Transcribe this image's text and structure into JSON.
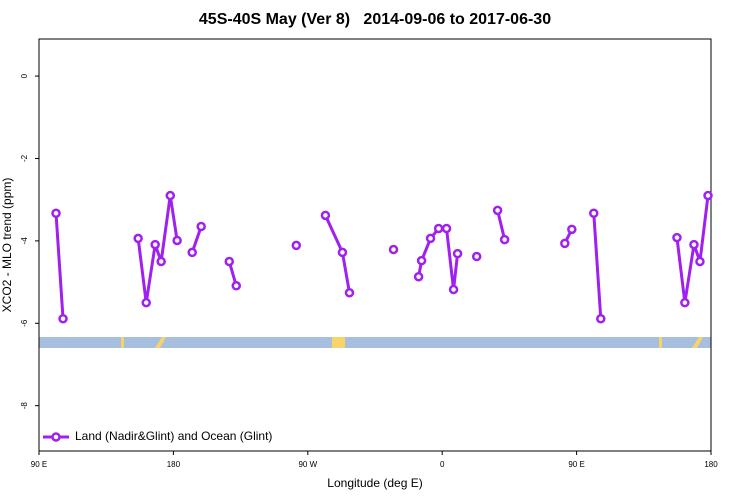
{
  "chart_data": {
    "type": "line",
    "title": "45S-40S May (Ver 8)   2014-09-06 to 2017-06-30",
    "xlabel": "Longitude (deg E)",
    "ylabel": "XCO2 - MLO trend (ppm)",
    "xlim": [
      90,
      540
    ],
    "ylim": [
      -9.1,
      0.9
    ],
    "xticks": [
      {
        "value": 90,
        "label": "90 E"
      },
      {
        "value": 180,
        "label": "180"
      },
      {
        "value": 270,
        "label": "90 W"
      },
      {
        "value": 360,
        "label": "0"
      },
      {
        "value": 450,
        "label": "90 E"
      },
      {
        "value": 540,
        "label": "180"
      }
    ],
    "yticks": [
      0,
      -2,
      -4,
      -6,
      -8
    ],
    "legend": "bottom-left",
    "series": [
      {
        "name": "Land (Nadir&Glint) and Ocean (Glint)",
        "color": "#a020f0",
        "x": [
          101.4,
          106.1,
          null,
          156.4,
          161.8,
          167.8,
          171.8,
          177.9,
          182.5,
          null,
          192.6,
          198.6,
          null,
          217.4,
          222.1,
          null,
          262.3,
          null,
          281.8,
          293.2,
          297.9,
          null,
          327.4,
          null,
          344.2,
          346.2,
          352.2,
          357.6,
          362.9,
          367.6,
          370.3,
          null,
          383.1,
          null,
          397.1,
          401.8,
          null,
          442.1,
          446.8,
          null,
          461.5,
          466.2,
          null,
          517.2,
          522.5,
          528.6,
          532.6,
          538.0
        ],
        "values": [
          -3.33,
          -5.89,
          null,
          -3.94,
          -5.5,
          -4.09,
          -4.5,
          -2.9,
          -3.99,
          null,
          -4.28,
          -3.65,
          null,
          -4.5,
          -5.09,
          null,
          -4.11,
          null,
          -3.38,
          -4.28,
          -5.26,
          null,
          -4.21,
          null,
          -4.87,
          -4.48,
          -3.94,
          -3.7,
          -3.7,
          -5.18,
          -4.31,
          null,
          -4.38,
          null,
          -3.26,
          -3.97,
          null,
          -4.06,
          -3.72,
          null,
          -3.33,
          -5.89,
          null,
          -3.92,
          -5.5,
          -4.09,
          -4.5,
          -2.9
        ]
      }
    ]
  }
}
